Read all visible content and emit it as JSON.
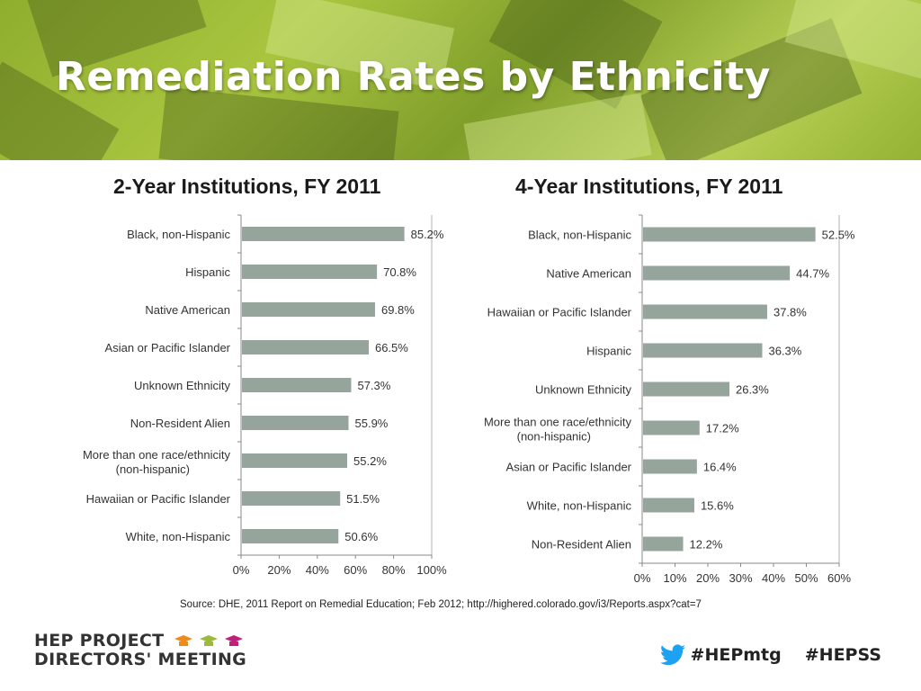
{
  "slide": {
    "title": "Remediation Rates by Ethnicity",
    "source": "Source: DHE, 2011 Report on Remedial Education; Feb 2012;  http://highered.colorado.gov/i3/Reports.aspx?cat=7",
    "logo_line1": "HEP PROJECT",
    "logo_line2": "DIRECTORS' MEETING",
    "hashtag1": "#HEPmtg",
    "hashtag2": "#HEPSS",
    "colors": {
      "bar": "#96a59b",
      "title_text": "#ffffff",
      "banner": "#9dbb3a",
      "twitter": "#1da1f2"
    }
  },
  "chart_data": [
    {
      "type": "bar",
      "orientation": "horizontal",
      "title": "2-Year Institutions, FY 2011",
      "categories": [
        "Black, non-Hispanic",
        "Hispanic",
        "Native American",
        "Asian or Pacific Islander",
        "Unknown Ethnicity",
        "Non-Resident Alien",
        "More than one race/ethnicity (non-hispanic)",
        "Hawaiian or Pacific Islander",
        "White, non-Hispanic"
      ],
      "values": [
        85.2,
        70.8,
        69.8,
        66.5,
        57.3,
        55.9,
        55.2,
        51.5,
        50.6
      ],
      "value_labels": [
        "85.2%",
        "70.8%",
        "69.8%",
        "66.5%",
        "57.3%",
        "55.9%",
        "55.2%",
        "51.5%",
        "50.6%"
      ],
      "xlim": [
        0,
        100
      ],
      "xticks": [
        "0%",
        "20%",
        "40%",
        "60%",
        "80%",
        "100%"
      ],
      "grid": false,
      "legend": "none"
    },
    {
      "type": "bar",
      "orientation": "horizontal",
      "title": "4-Year Institutions, FY 2011",
      "categories": [
        "Black, non-Hispanic",
        "Native American",
        "Hawaiian or Pacific Islander",
        "Hispanic",
        "Unknown Ethnicity",
        "More than one race/ethnicity (non-hispanic)",
        "Asian or Pacific Islander",
        "White, non-Hispanic",
        "Non-Resident Alien"
      ],
      "values": [
        52.5,
        44.7,
        37.8,
        36.3,
        26.3,
        17.2,
        16.4,
        15.6,
        12.2
      ],
      "value_labels": [
        "52.5%",
        "44.7%",
        "37.8%",
        "36.3%",
        "26.3%",
        "17.2%",
        "16.4%",
        "15.6%",
        "12.2%"
      ],
      "xlim": [
        0,
        60
      ],
      "xticks": [
        "0%",
        "10%",
        "20%",
        "30%",
        "40%",
        "50%",
        "60%"
      ],
      "grid": false,
      "legend": "none"
    }
  ]
}
